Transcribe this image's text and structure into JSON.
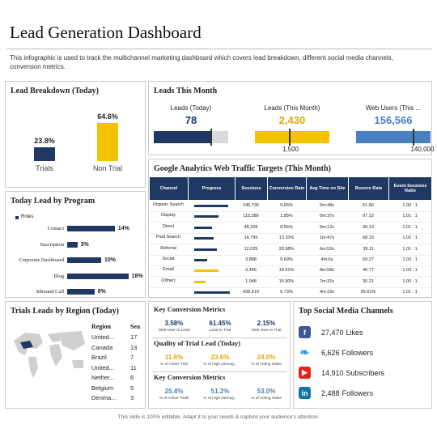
{
  "header": {
    "title": "Lead Generation Dashboard",
    "description": "This infographic is used to track the multichannel marketing dashboard which covers lead breakdown, different social media channels, conversion metrics."
  },
  "lead_breakdown": {
    "title": "Lead Breakdown (Today)",
    "bars": [
      {
        "label": "Trials",
        "value": 23.8,
        "value_label": "23.8%"
      },
      {
        "label": "Non Trial",
        "value": 64.6,
        "value_label": "64.6%"
      }
    ]
  },
  "leads_this_month": {
    "title": "Leads This Month",
    "gauges": [
      {
        "label": "Leads (Today)",
        "value": "78"
      },
      {
        "label": "Leads (This Month)",
        "value": "2,430",
        "target": "1,500"
      },
      {
        "label": "Web Users (This ...",
        "value": "156,566",
        "target": "140,000"
      }
    ]
  },
  "analytics": {
    "title": "Google Analytics Web Traffic Targets (This Month)",
    "columns": [
      "Channel",
      "Progress",
      "Sessions",
      "Conversion Rate",
      "Avg Time on Site",
      "Bounce Rate",
      "Event Sessions Ratio"
    ],
    "rows": [
      {
        "channel": "Organic Search",
        "sessions": "245,735",
        "conversion": "5.65%",
        "time": "5m:48s",
        "bounce": "51.66",
        "ratio": "1.00 : 1"
      },
      {
        "channel": "Display",
        "sessions": "115,380",
        "conversion": "1.85%",
        "time": "0m:37s",
        "bounce": "97.12",
        "ratio": "1.01 : 1"
      },
      {
        "channel": "Direct",
        "sessions": "48,326",
        "conversion": "8.55%",
        "time": "5m:12s",
        "bounce": "39.13",
        "ratio": "1.01 : 1"
      },
      {
        "channel": "Paid Search",
        "sessions": "14,795",
        "conversion": "13.10%",
        "time": "1m:47s",
        "bounce": "68.15",
        "ratio": "1.02 : 1"
      },
      {
        "channel": "Referral",
        "sessions": "12,025",
        "conversion": "28.98%",
        "time": "6m:52s",
        "bounce": "39.11",
        "ratio": "1.01 : 1"
      },
      {
        "channel": "Social",
        "sessions": "3,888",
        "conversion": "5.69%",
        "time": "4m:6s",
        "bounce": "59.27",
        "ratio": "1.03 : 1"
      },
      {
        "channel": "Email",
        "sessions": "3,456",
        "conversion": "14.01%",
        "time": "8m:58s",
        "bounce": "40.77",
        "ratio": "1.03 : 1"
      },
      {
        "channel": "(Other)",
        "sessions": "1,948",
        "conversion": "15.90%",
        "time": "7m:31s",
        "bounce": "30.21",
        "ratio": "1.00 : 1"
      },
      {
        "sessions": "428,610",
        "conversion": "6.73%",
        "time": "4m:19s",
        "bounce": "55.61%",
        "ratio": "1.01 : 1"
      }
    ]
  },
  "program": {
    "title": "Today Lead by Program",
    "legend": "Roles",
    "bars": [
      {
        "label": "Contact",
        "value": 14,
        "value_label": "14%"
      },
      {
        "label": "Suscription",
        "value": 3,
        "value_label": "3%"
      },
      {
        "label": "Corporate Dashboard",
        "value": 10,
        "value_label": "10%"
      },
      {
        "label": "Blog",
        "value": 18,
        "value_label": "18%"
      },
      {
        "label": "Inbound Call",
        "value": 8,
        "value_label": "8%"
      }
    ]
  },
  "regions": {
    "title": "Trials Leads by Region (Today)",
    "columns": [
      "Region",
      "Sea"
    ],
    "rows": [
      [
        "United...",
        "17"
      ],
      [
        "Canada",
        "13"
      ],
      [
        "Brazil",
        "7"
      ],
      [
        "United...",
        "11"
      ],
      [
        "Nether...",
        "6"
      ],
      [
        "Belgium",
        "5"
      ],
      [
        "Denma...",
        "3"
      ]
    ]
  },
  "metrics": [
    {
      "title": "Key Conversion  Metrics",
      "items": [
        {
          "value": "3.58%",
          "label": "Web User to Lead"
        },
        {
          "value": "61.45%",
          "label": "Lead to Trial"
        },
        {
          "value": "2.15%",
          "label": "Web User to Trial"
        }
      ]
    },
    {
      "title": "Quality of Trial Lead (Today)",
      "items": [
        {
          "value": "11.6%",
          "label": "% of Active This"
        },
        {
          "value": "23.6%",
          "label": "% of High Demog..."
        },
        {
          "value": "24.0%",
          "label": "% of Voting Sales"
        }
      ]
    },
    {
      "title": "Key Conversion  Metrics",
      "items": [
        {
          "value": "25.4%",
          "label": "% of Active Trials"
        },
        {
          "value": "51.2%",
          "label": "% of High Demog..."
        },
        {
          "value": "53.0%",
          "label": "% of Voting Sales"
        }
      ]
    }
  ],
  "social": {
    "title": "Top Social Media Channels",
    "items": [
      {
        "value": "27,470",
        "label": "Likes"
      },
      {
        "value": "6,626",
        "label": "Followers"
      },
      {
        "value": "14,910",
        "label": "Subscribers"
      },
      {
        "value": "2,488",
        "label": "Followers"
      }
    ]
  },
  "footer": "This slide is 100% editable. Adapt it to your needs & capture your audience's attention."
}
